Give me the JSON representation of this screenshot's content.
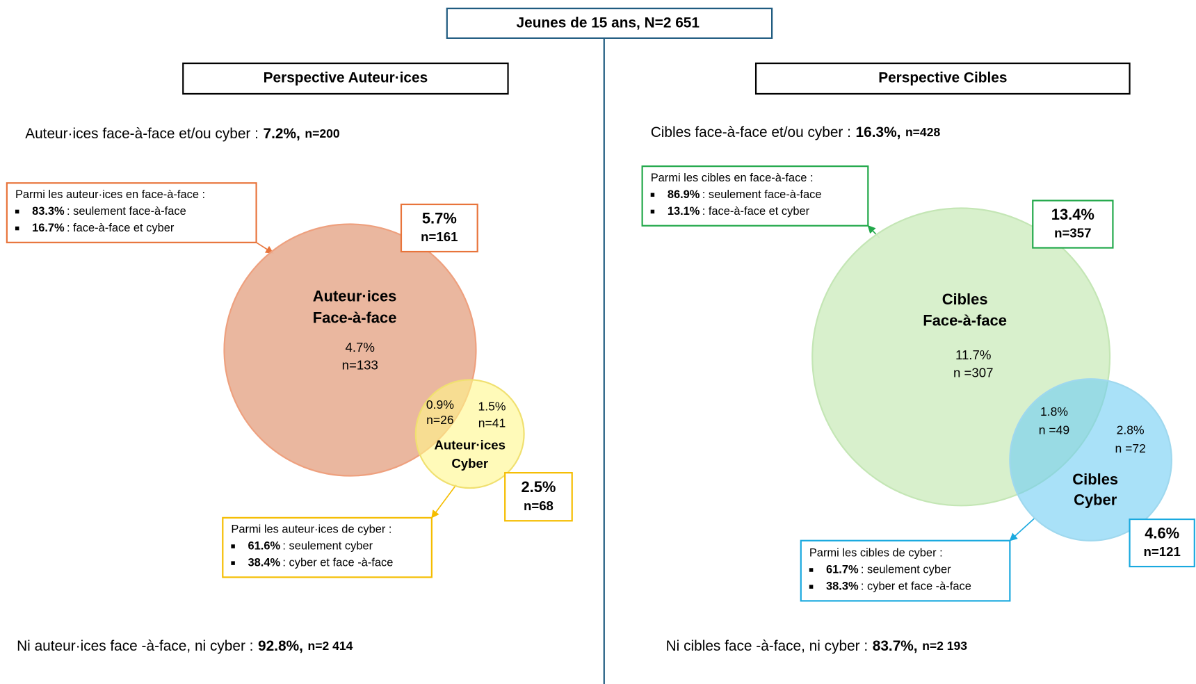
{
  "header": {
    "title": "Jeunes de 15 ans, N=2 651"
  },
  "panels": [
    {
      "title": "Perspective Auteur·ices",
      "total": {
        "label": "Auteur·ices face-à-face et/ou cyber :",
        "pct": "7.2%,",
        "n": "n=200"
      },
      "face_note": {
        "intro": "Parmi les auteur·ices en face-à-face :",
        "items": [
          {
            "pct": "83.3%",
            "text": ": seulement face-à-face"
          },
          {
            "pct": "16.7%",
            "text": ": face-à-face et cyber"
          }
        ]
      },
      "face_box": {
        "pct": "5.7%",
        "n": "n=161"
      },
      "face_circle": {
        "label": [
          "Auteur·ices",
          "Face-à-face"
        ],
        "pct": "4.7%",
        "n": "n=133"
      },
      "overlap": {
        "pct": "0.9%",
        "n": "n=26"
      },
      "cyber_only": {
        "pct": "1.5%",
        "n": "n=41"
      },
      "cyber_circle": {
        "label": [
          "Auteur·ices",
          "Cyber"
        ]
      },
      "cyber_box": {
        "pct": "2.5%",
        "n": "n=68"
      },
      "cyber_note": {
        "intro": "Parmi les auteur·ices de cyber :",
        "items": [
          {
            "pct": "61.6%",
            "text": ": seulement cyber"
          },
          {
            "pct": "38.4%",
            "text": ": cyber et face -à-face"
          }
        ]
      },
      "none": {
        "label": "Ni auteur·ices face -à-face, ni cyber :",
        "pct": "92.8%,",
        "n": "n=2 414"
      }
    },
    {
      "title": "Perspective Cibles",
      "total": {
        "label": "Cibles face-à-face et/ou cyber :",
        "pct": "16.3%,",
        "n": "n=428"
      },
      "face_note": {
        "intro": "Parmi les cibles en  face-à-face :",
        "items": [
          {
            "pct": "86.9%",
            "text": ": seulement face-à-face"
          },
          {
            "pct": "13.1%",
            "text": ": face-à-face et cyber"
          }
        ]
      },
      "face_box": {
        "pct": "13.4%",
        "n": "n=357"
      },
      "face_circle": {
        "label": [
          "Cibles",
          "Face-à-face"
        ],
        "pct": "11.7%",
        "n": "n =307"
      },
      "overlap": {
        "pct": "1.8%",
        "n": "n =49"
      },
      "cyber_only": {
        "pct": "2.8%",
        "n": "n =72"
      },
      "cyber_circle": {
        "label": [
          "Cibles",
          "Cyber"
        ]
      },
      "cyber_box": {
        "pct": "4.6%",
        "n": "n=121"
      },
      "cyber_note": {
        "intro": "Parmi les cibles de cyber :",
        "items": [
          {
            "pct": "61.7%",
            "text": ": seulement cyber"
          },
          {
            "pct": "38.3%",
            "text": ": cyber et face -à-face"
          }
        ]
      },
      "none": {
        "label": "Ni cibles face -à-face, ni cyber :",
        "pct": "83.7%,",
        "n": "n=2 193"
      }
    }
  ]
}
